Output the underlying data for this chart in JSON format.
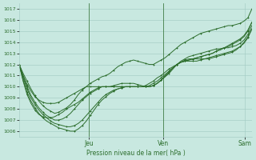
{
  "xlabel": "Pression niveau de la mer( hPa )",
  "bg_color": "#c8e8e0",
  "grid_color": "#a0c8c0",
  "line_color": "#2d6e2d",
  "ylim": [
    1005.5,
    1017.5
  ],
  "yticks": [
    1006,
    1007,
    1008,
    1009,
    1010,
    1011,
    1012,
    1013,
    1014,
    1015,
    1016,
    1017
  ],
  "day_labels": [
    "Jeu",
    "Ven",
    "Sam"
  ],
  "day_positions": [
    0.3,
    0.62,
    0.97
  ],
  "vline_positions": [
    0.3,
    0.62
  ],
  "num_steps": 60,
  "lines": [
    [
      1012.0,
      1011.2,
      1010.5,
      1009.8,
      1009.2,
      1008.7,
      1008.3,
      1008.0,
      1007.8,
      1007.6,
      1007.7,
      1007.9,
      1008.1,
      1008.4,
      1008.8,
      1009.3,
      1009.7,
      1010.0,
      1010.3,
      1010.5,
      1010.7,
      1010.9,
      1011.0,
      1011.2,
      1011.5,
      1011.8,
      1012.0,
      1012.2,
      1012.3,
      1012.4,
      1012.3,
      1012.2,
      1012.1,
      1012.0,
      1012.0,
      1012.2,
      1012.4,
      1012.6,
      1012.9,
      1013.2,
      1013.5,
      1013.8,
      1014.0,
      1014.2,
      1014.4,
      1014.6,
      1014.8,
      1014.9,
      1015.0,
      1015.1,
      1015.2,
      1015.3,
      1015.4,
      1015.5,
      1015.5,
      1015.6,
      1015.7,
      1015.9,
      1016.2,
      1017.0
    ],
    [
      1012.0,
      1011.0,
      1010.0,
      1009.2,
      1008.6,
      1008.1,
      1007.7,
      1007.4,
      1007.2,
      1007.0,
      1007.0,
      1007.1,
      1007.3,
      1007.6,
      1008.0,
      1008.4,
      1008.8,
      1009.1,
      1009.4,
      1009.6,
      1009.8,
      1010.0,
      1010.0,
      1010.0,
      1010.1,
      1010.2,
      1010.3,
      1010.3,
      1010.3,
      1010.3,
      1010.2,
      1010.1,
      1010.0,
      1010.0,
      1010.1,
      1010.3,
      1010.6,
      1010.9,
      1011.2,
      1011.6,
      1012.0,
      1012.3,
      1012.5,
      1012.7,
      1012.8,
      1012.9,
      1013.0,
      1013.1,
      1013.2,
      1013.3,
      1013.4,
      1013.4,
      1013.5,
      1013.5,
      1013.6,
      1013.7,
      1013.9,
      1014.2,
      1014.7,
      1015.5
    ],
    [
      1012.0,
      1010.8,
      1009.8,
      1009.0,
      1008.4,
      1007.9,
      1007.5,
      1007.2,
      1006.9,
      1006.7,
      1006.6,
      1006.5,
      1006.4,
      1006.4,
      1006.5,
      1006.7,
      1007.0,
      1007.4,
      1007.8,
      1008.2,
      1008.6,
      1009.0,
      1009.3,
      1009.5,
      1009.7,
      1009.8,
      1009.9,
      1010.0,
      1010.0,
      1010.0,
      1010.0,
      1010.0,
      1010.0,
      1010.0,
      1010.1,
      1010.3,
      1010.6,
      1010.9,
      1011.3,
      1011.7,
      1012.0,
      1012.2,
      1012.4,
      1012.5,
      1012.5,
      1012.5,
      1012.5,
      1012.5,
      1012.5,
      1012.6,
      1012.7,
      1012.8,
      1012.9,
      1013.0,
      1013.1,
      1013.3,
      1013.6,
      1013.9,
      1014.4,
      1015.2
    ],
    [
      1012.0,
      1010.6,
      1009.5,
      1008.7,
      1008.1,
      1007.6,
      1007.2,
      1006.9,
      1006.7,
      1006.5,
      1006.3,
      1006.2,
      1006.1,
      1006.0,
      1006.0,
      1006.2,
      1006.5,
      1006.9,
      1007.4,
      1007.9,
      1008.4,
      1008.8,
      1009.1,
      1009.4,
      1009.6,
      1009.8,
      1009.9,
      1010.0,
      1010.0,
      1010.0,
      1010.0,
      1010.0,
      1010.0,
      1010.0,
      1010.1,
      1010.3,
      1010.6,
      1011.0,
      1011.4,
      1011.7,
      1012.0,
      1012.2,
      1012.3,
      1012.3,
      1012.3,
      1012.3,
      1012.4,
      1012.5,
      1012.6,
      1012.7,
      1012.8,
      1012.9,
      1013.0,
      1013.1,
      1013.2,
      1013.4,
      1013.6,
      1014.0,
      1014.5,
      1015.2
    ],
    [
      1012.0,
      1010.5,
      1009.3,
      1008.5,
      1007.9,
      1007.5,
      1007.3,
      1007.2,
      1007.2,
      1007.3,
      1007.5,
      1007.7,
      1008.0,
      1008.2,
      1008.4,
      1008.6,
      1008.9,
      1009.2,
      1009.5,
      1009.7,
      1009.9,
      1010.0,
      1010.0,
      1010.0,
      1010.0,
      1010.0,
      1010.0,
      1010.0,
      1010.0,
      1010.0,
      1010.0,
      1010.0,
      1010.0,
      1010.1,
      1010.3,
      1010.5,
      1010.8,
      1011.1,
      1011.4,
      1011.7,
      1012.0,
      1012.2,
      1012.3,
      1012.4,
      1012.5,
      1012.6,
      1012.7,
      1012.8,
      1012.9,
      1013.0,
      1013.2,
      1013.3,
      1013.5,
      1013.6,
      1013.8,
      1014.0,
      1014.2,
      1014.5,
      1015.0,
      1015.8
    ],
    [
      1012.0,
      1011.0,
      1010.2,
      1009.6,
      1009.1,
      1008.8,
      1008.6,
      1008.5,
      1008.5,
      1008.5,
      1008.6,
      1008.8,
      1009.0,
      1009.2,
      1009.4,
      1009.6,
      1009.8,
      1010.0,
      1010.0,
      1010.0,
      1010.0,
      1010.0,
      1010.0,
      1010.0,
      1010.0,
      1010.0,
      1010.0,
      1010.0,
      1010.0,
      1010.0,
      1010.0,
      1010.0,
      1010.1,
      1010.3,
      1010.5,
      1010.8,
      1011.0,
      1011.3,
      1011.6,
      1011.8,
      1012.0,
      1012.2,
      1012.3,
      1012.4,
      1012.5,
      1012.6,
      1012.7,
      1012.8,
      1012.9,
      1013.0,
      1013.2,
      1013.4,
      1013.5,
      1013.7,
      1013.9,
      1014.1,
      1014.3,
      1014.6,
      1015.1,
      1015.8
    ]
  ]
}
